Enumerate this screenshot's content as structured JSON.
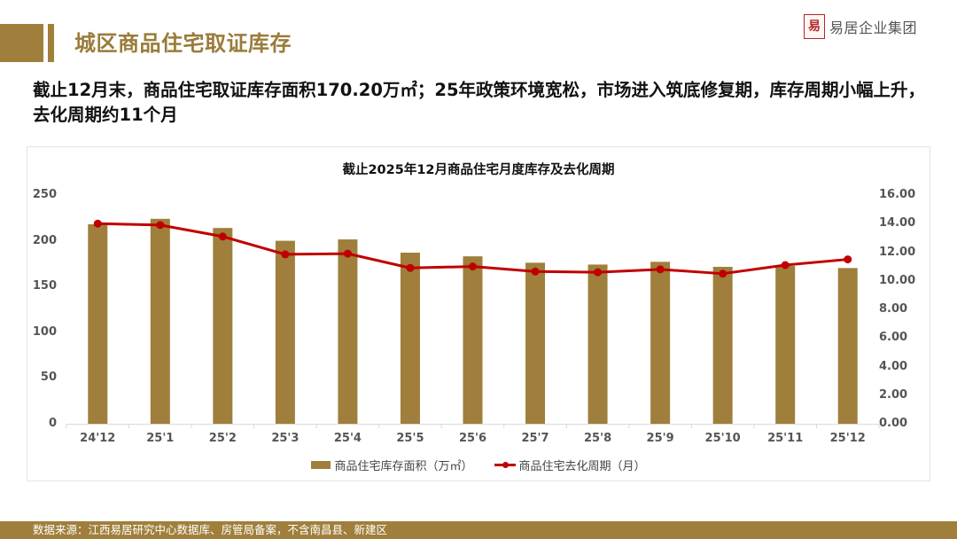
{
  "header": {
    "title": "城区商品住宅取证库存",
    "logo_seal": "易居",
    "logo_text": "易居企业集团"
  },
  "headline": "截止12月末，商品住宅取证库存面积170.20万㎡；25年政策环境宽松，市场进入筑底修复期，库存周期小幅上升，去化周期约11个月",
  "chart": {
    "title": "截止2025年12月商品住宅月度库存及去化周期",
    "left_ticks": [
      "250",
      "200",
      "150",
      "100",
      "50",
      "0"
    ],
    "right_ticks": [
      "16.00",
      "14.00",
      "12.00",
      "10.00",
      "8.00",
      "6.00",
      "4.00",
      "2.00",
      "0.00"
    ],
    "legend": {
      "bar_label": "商品住宅库存面积（万㎡）",
      "line_label": "商品住宅去化周期（月）"
    },
    "colors": {
      "bar": "#9f7f3b",
      "line": "#c00000"
    }
  },
  "chart_data": {
    "type": "bar+line",
    "title": "截止2025年12月商品住宅月度库存及去化周期",
    "categories": [
      "24'12",
      "25'1",
      "25'2",
      "25'3",
      "25'4",
      "25'5",
      "25'6",
      "25'7",
      "25'8",
      "25'9",
      "25'10",
      "25'11",
      "25'12"
    ],
    "series": [
      {
        "name": "商品住宅库存面积（万㎡）",
        "type": "bar",
        "axis": "left",
        "values": [
          218,
          224,
          214,
          200,
          201.5,
          187,
          183,
          176,
          174,
          177,
          171.5,
          172.5,
          170.2
        ]
      },
      {
        "name": "商品住宅去化周期（月）",
        "type": "line",
        "axis": "right",
        "values": [
          14.0,
          13.9,
          13.1,
          11.85,
          11.9,
          10.9,
          11.0,
          10.65,
          10.6,
          10.8,
          10.5,
          11.1,
          11.5
        ]
      }
    ],
    "ylim_left": [
      0,
      250
    ],
    "ylim_right": [
      0,
      16
    ],
    "grid": false,
    "legend_position": "bottom"
  },
  "footer": {
    "source": "数据来源：江西易居研究中心数据库、房管局备案，不含南昌县、新建区"
  }
}
